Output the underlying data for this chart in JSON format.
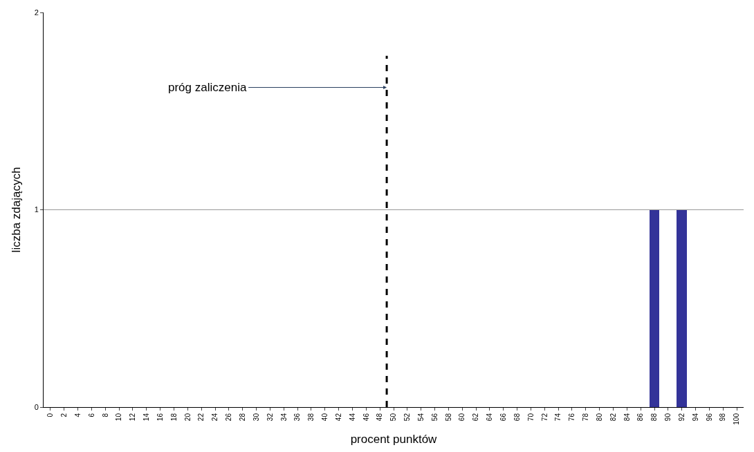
{
  "chart_data": {
    "type": "bar",
    "xlabel": "procent punktów",
    "ylabel": "liczba zdających",
    "x": [
      0,
      2,
      4,
      6,
      8,
      10,
      12,
      14,
      16,
      18,
      20,
      22,
      24,
      26,
      28,
      30,
      32,
      34,
      36,
      38,
      40,
      42,
      44,
      46,
      48,
      50,
      52,
      54,
      56,
      58,
      60,
      62,
      64,
      66,
      68,
      70,
      72,
      74,
      76,
      78,
      80,
      82,
      84,
      86,
      88,
      90,
      92,
      94,
      96,
      98,
      100
    ],
    "values": [
      0,
      0,
      0,
      0,
      0,
      0,
      0,
      0,
      0,
      0,
      0,
      0,
      0,
      0,
      0,
      0,
      0,
      0,
      0,
      0,
      0,
      0,
      0,
      0,
      0,
      0,
      0,
      0,
      0,
      0,
      0,
      0,
      0,
      0,
      0,
      0,
      0,
      0,
      0,
      0,
      0,
      0,
      0,
      0,
      1,
      0,
      1,
      0,
      0,
      0,
      0
    ],
    "color": "#333399",
    "xlim": [
      -1,
      101
    ],
    "xticks": [
      0,
      2,
      4,
      6,
      8,
      10,
      12,
      14,
      16,
      18,
      20,
      22,
      24,
      26,
      28,
      30,
      32,
      34,
      36,
      38,
      40,
      42,
      44,
      46,
      48,
      50,
      52,
      54,
      56,
      58,
      60,
      62,
      64,
      66,
      68,
      70,
      72,
      74,
      76,
      78,
      80,
      82,
      84,
      86,
      88,
      90,
      92,
      94,
      96,
      98,
      100
    ],
    "ylim": [
      0,
      2
    ],
    "yticks": [
      0,
      1,
      2
    ],
    "grid": "y",
    "ref_lines": [
      {
        "axis": "x",
        "value": 49,
        "color": "#000000",
        "line_style": "dashed"
      }
    ],
    "annotations": [
      {
        "text": "próg zaliczenia",
        "x": 49,
        "y": 1.62
      }
    ]
  }
}
